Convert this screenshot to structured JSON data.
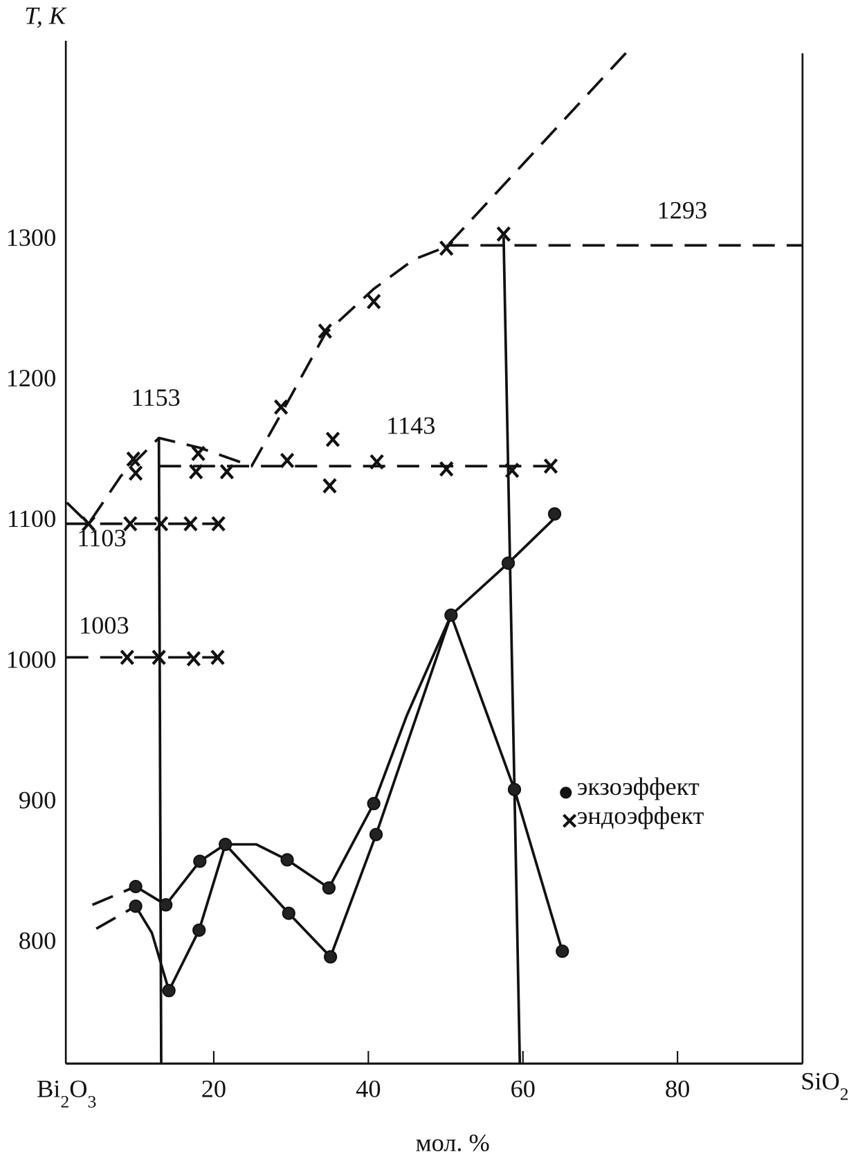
{
  "chart_data": {
    "type": "scatter",
    "title": "",
    "ylabel": "T, K",
    "xlabel": "мол. %",
    "x_left_label": "Bi2O3",
    "x_right_label": "SiO2",
    "xlim": [
      0.9,
      96.2
    ],
    "ylim": [
      712,
      1440
    ],
    "x_ticks": [
      20,
      40,
      60,
      80
    ],
    "y_ticks": [
      800,
      900,
      1000,
      1100,
      1200,
      1300
    ],
    "grid": false,
    "legend_placement": "center-right",
    "legend": [
      {
        "marker": "filled-circle",
        "label": "экзоэффект"
      },
      {
        "marker": "cross",
        "label": "эндоэффект"
      }
    ],
    "annotations": [
      {
        "text": "1153",
        "x": 12.5,
        "y": 1180
      },
      {
        "text": "1143",
        "x": 45.5,
        "y": 1160
      },
      {
        "text": "1293",
        "x": 80.6,
        "y": 1313
      },
      {
        "text": "1103",
        "x": 5.5,
        "y": 1080
      },
      {
        "text": "1003",
        "x": 5.8,
        "y": 1018
      }
    ],
    "exo_points": [
      [
        9.9,
        838
      ],
      [
        13.8,
        825
      ],
      [
        18.2,
        856
      ],
      [
        21.5,
        868
      ],
      [
        29.5,
        857
      ],
      [
        34.9,
        837
      ],
      [
        40.7,
        897
      ],
      [
        50.7,
        1031
      ],
      [
        58.1,
        1068
      ],
      [
        64.1,
        1103
      ],
      [
        9.9,
        824
      ],
      [
        14.2,
        764
      ],
      [
        18.1,
        807
      ],
      [
        29.7,
        819
      ],
      [
        35.1,
        788
      ],
      [
        41.0,
        875
      ],
      [
        58.9,
        907
      ],
      [
        65.1,
        792
      ]
    ],
    "endo_points": [
      [
        3.8,
        1096
      ],
      [
        9.2,
        1096
      ],
      [
        13.2,
        1096
      ],
      [
        17.0,
        1096
      ],
      [
        20.6,
        1096
      ],
      [
        8.8,
        1001
      ],
      [
        12.9,
        1001
      ],
      [
        17.4,
        1000
      ],
      [
        20.5,
        1001
      ],
      [
        9.6,
        1142
      ],
      [
        9.9,
        1132
      ],
      [
        18.0,
        1146
      ],
      [
        17.7,
        1133
      ],
      [
        21.7,
        1133
      ],
      [
        29.5,
        1141
      ],
      [
        35.4,
        1156
      ],
      [
        35.0,
        1123
      ],
      [
        41.1,
        1140
      ],
      [
        50.1,
        1135
      ],
      [
        58.6,
        1134
      ],
      [
        63.6,
        1137
      ],
      [
        28.7,
        1179
      ],
      [
        34.4,
        1233
      ],
      [
        40.7,
        1254
      ],
      [
        50.1,
        1292
      ],
      [
        57.5,
        1302
      ]
    ],
    "lines": [
      {
        "style": "dashed",
        "points": [
          [
            1.0,
            1111
          ],
          [
            3.8,
            1096
          ],
          [
            8.0,
            1130
          ],
          [
            12.9,
            1157
          ],
          [
            18.2,
            1150
          ],
          [
            24.9,
            1137
          ],
          [
            28.7,
            1174
          ],
          [
            34.4,
            1231
          ],
          [
            40.7,
            1263
          ],
          [
            45.9,
            1284
          ],
          [
            50.1,
            1293
          ],
          [
            73.7,
            1433
          ]
        ]
      },
      {
        "style": "dashed",
        "points": [
          [
            50.1,
            1294
          ],
          [
            96.2,
            1294
          ]
        ]
      },
      {
        "style": "dashed",
        "points": [
          [
            12.9,
            1137
          ],
          [
            63.6,
            1137
          ]
        ]
      },
      {
        "style": "dashed",
        "points": [
          [
            0.9,
            1096
          ],
          [
            20.6,
            1096
          ]
        ]
      },
      {
        "style": "dashed",
        "points": [
          [
            0.9,
            1001
          ],
          [
            20.6,
            1001
          ]
        ]
      },
      {
        "style": "solid",
        "points": [
          [
            12.9,
            1157
          ],
          [
            13.2,
            712
          ]
        ]
      },
      {
        "style": "solid",
        "points": [
          [
            57.5,
            1300
          ],
          [
            59.6,
            712
          ]
        ]
      },
      {
        "style": "dashed",
        "points": [
          [
            4.3,
            825
          ],
          [
            9.9,
            838
          ]
        ]
      },
      {
        "style": "solid",
        "points": [
          [
            9.9,
            838
          ],
          [
            13.8,
            825
          ],
          [
            18.2,
            856
          ],
          [
            21.5,
            868
          ],
          [
            25.5,
            868
          ],
          [
            29.5,
            857
          ],
          [
            34.9,
            837
          ],
          [
            40.7,
            897
          ],
          [
            45.0,
            960
          ],
          [
            50.7,
            1031
          ],
          [
            58.1,
            1068
          ],
          [
            64.1,
            1100
          ]
        ]
      },
      {
        "style": "dashed",
        "points": [
          [
            4.8,
            808
          ],
          [
            9.9,
            824
          ]
        ]
      },
      {
        "style": "solid",
        "points": [
          [
            9.9,
            824
          ],
          [
            12.0,
            805
          ],
          [
            14.2,
            764
          ],
          [
            18.1,
            807
          ],
          [
            21.5,
            868
          ],
          [
            29.7,
            819
          ],
          [
            35.1,
            788
          ],
          [
            41.0,
            875
          ],
          [
            50.7,
            1031
          ],
          [
            58.9,
            907
          ],
          [
            65.1,
            792
          ]
        ]
      }
    ]
  }
}
